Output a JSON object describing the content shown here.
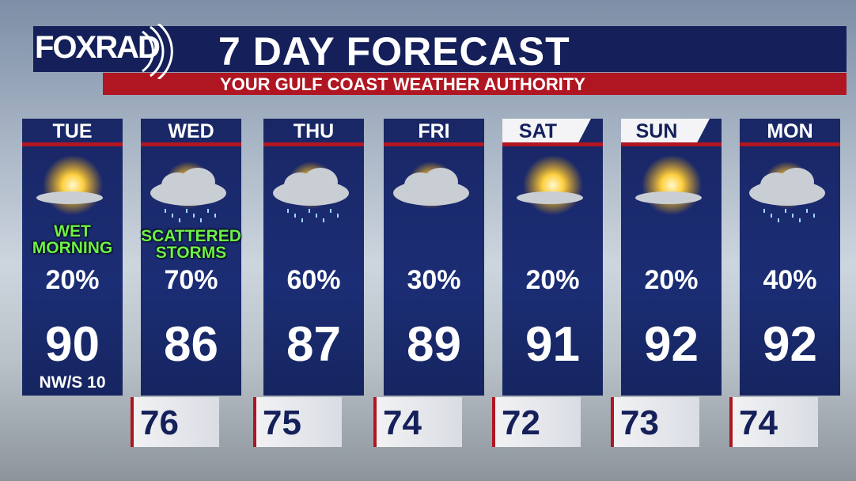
{
  "header": {
    "logo": "FOXRAD",
    "title": "7 DAY FORECAST",
    "subtitle": "YOUR GULF COAST WEATHER AUTHORITY"
  },
  "days": [
    {
      "day": "TUE",
      "note": [
        "WET",
        "MORNING"
      ],
      "precip": "20%",
      "high": "90",
      "wind": "NW/S 10"
    },
    {
      "day": "WED",
      "note": [
        "SCATTERED",
        "STORMS"
      ],
      "precip": "70%",
      "high": "86"
    },
    {
      "day": "THU",
      "precip": "60%",
      "high": "87"
    },
    {
      "day": "FRI",
      "precip": "30%",
      "high": "89"
    },
    {
      "day": "SAT",
      "precip": "20%",
      "high": "91"
    },
    {
      "day": "SUN",
      "precip": "20%",
      "high": "92"
    },
    {
      "day": "MON",
      "precip": "40%",
      "high": "92"
    }
  ],
  "lows": [
    "76",
    "75",
    "74",
    "72",
    "73",
    "74"
  ]
}
